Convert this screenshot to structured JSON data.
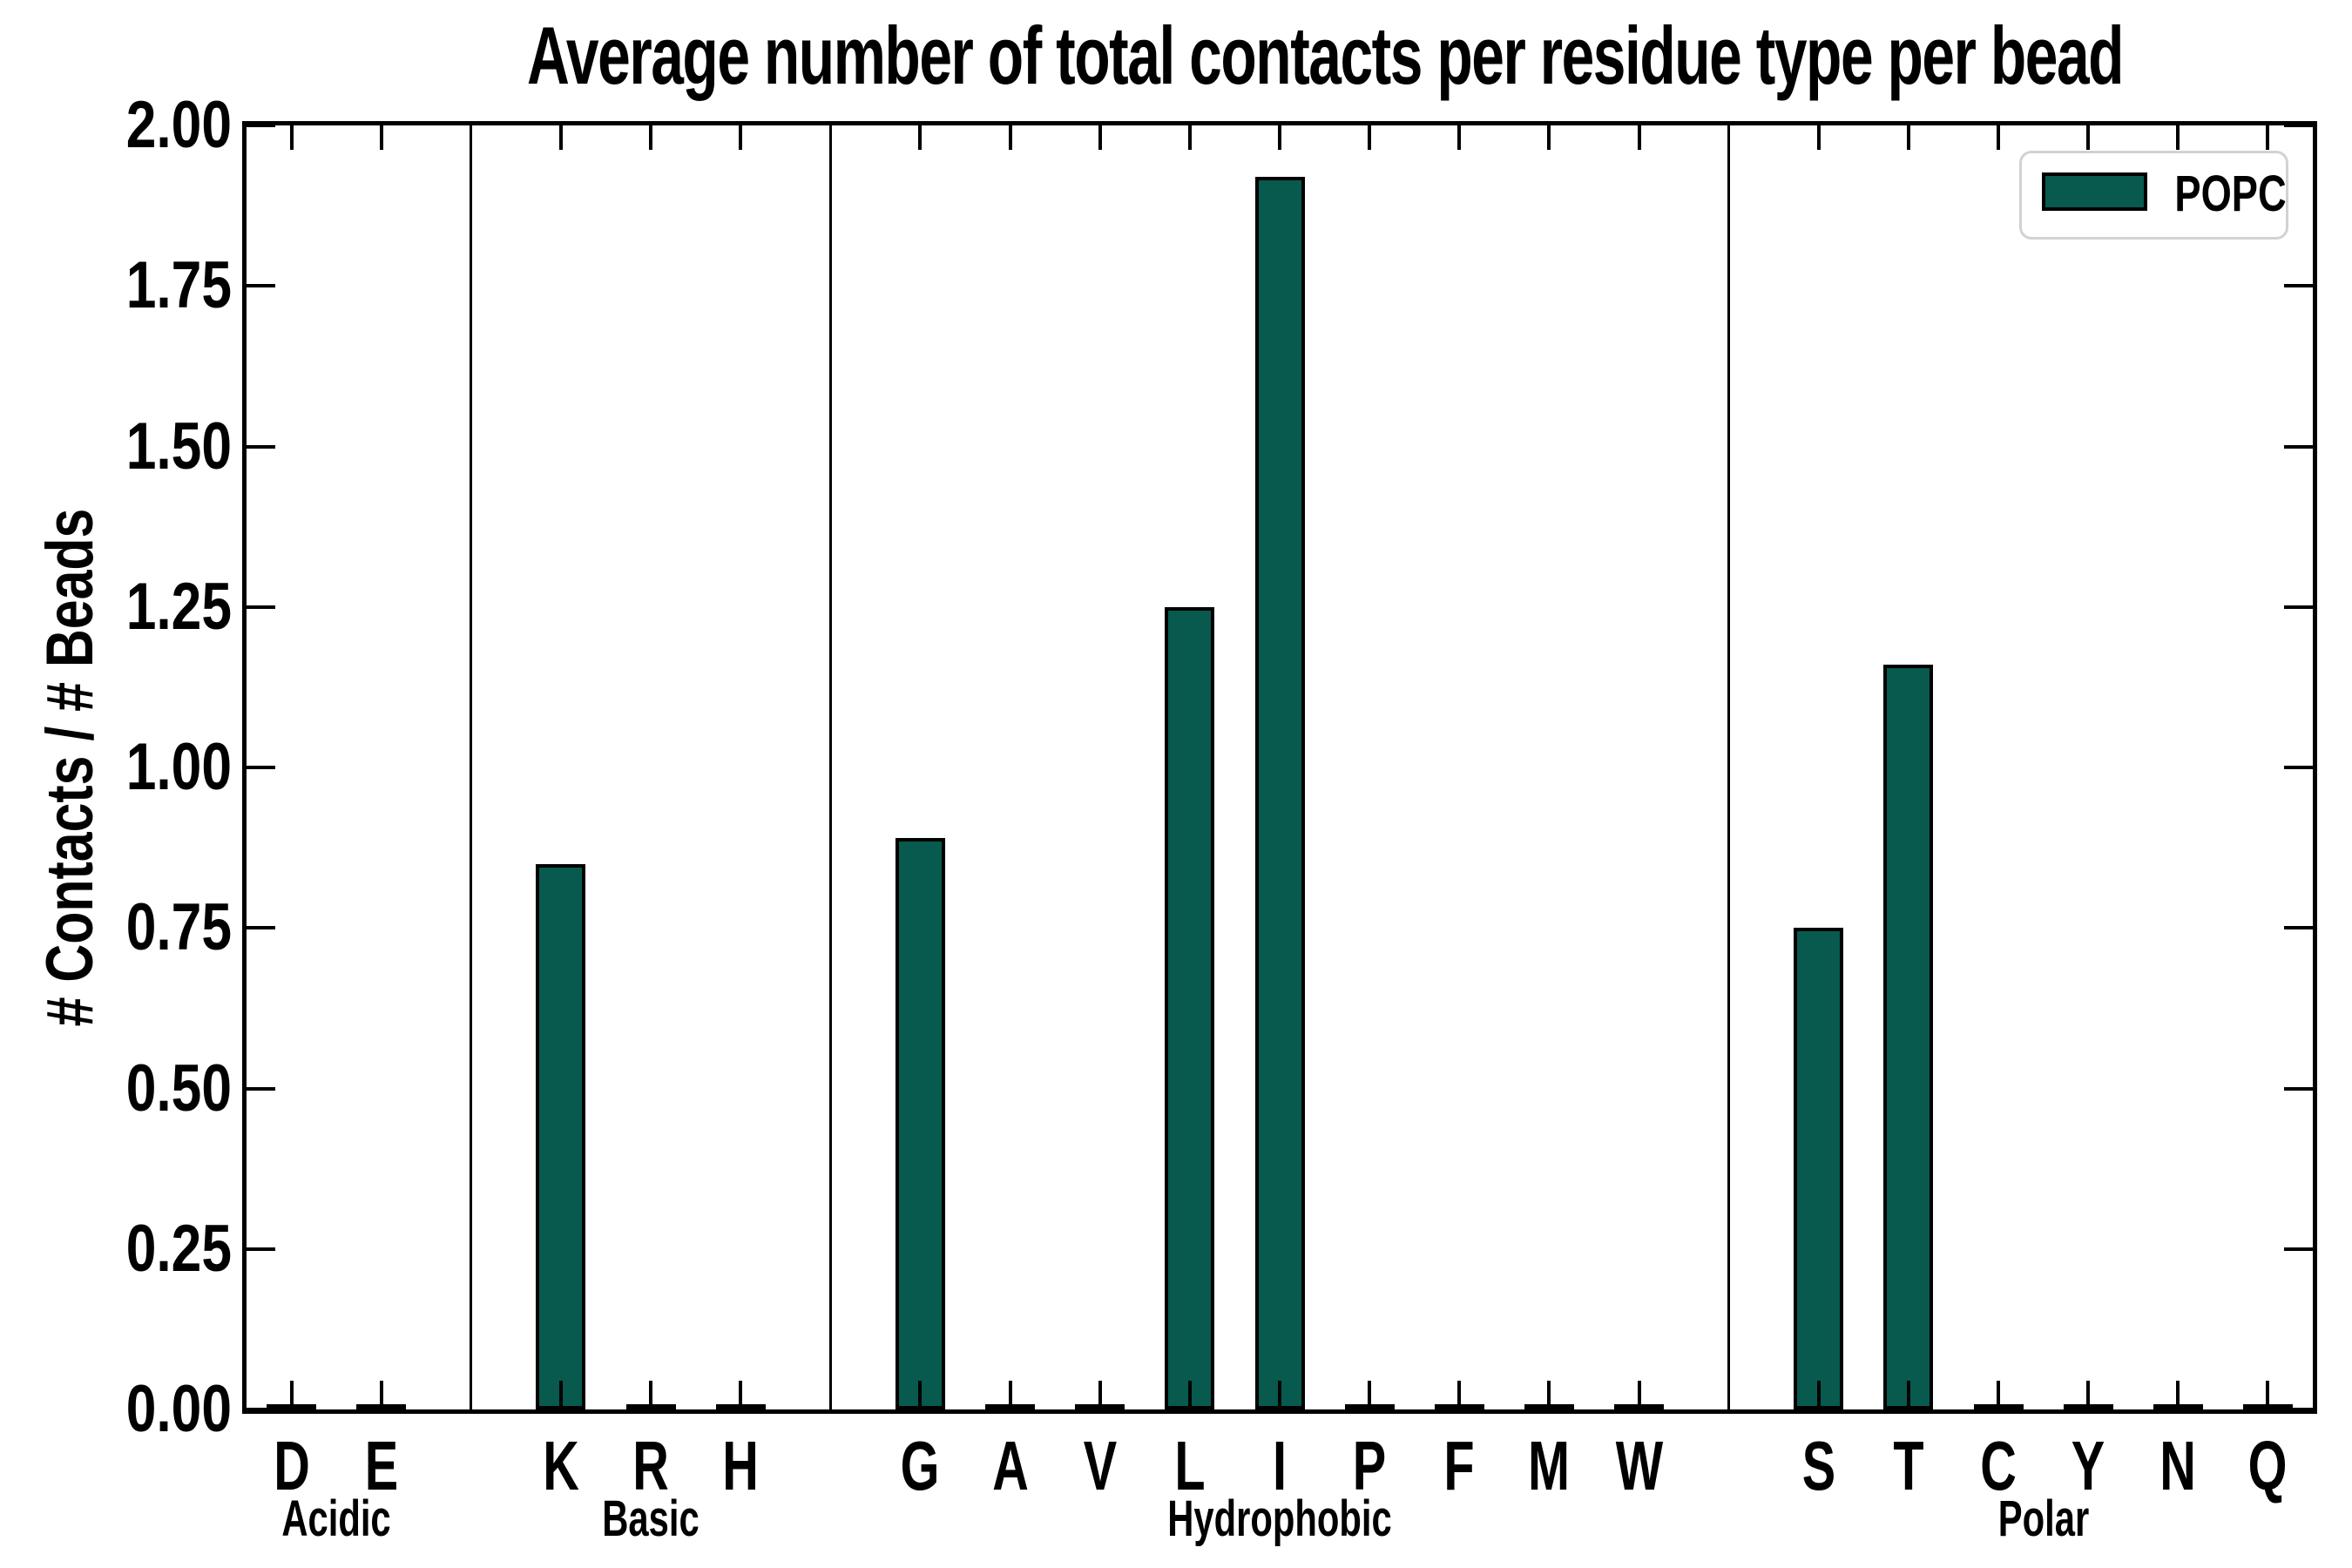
{
  "figure": {
    "title": "Average number of total contacts per residue type per bead",
    "ylabel": "# Contacts / # Beads",
    "legend_label": "POPC"
  },
  "chart_data": {
    "type": "bar",
    "title": "Average number of total contacts per residue type per bead",
    "xlabel": "",
    "ylabel": "# Contacts / # Beads",
    "ylim": [
      0,
      2.0
    ],
    "ytick_interval": 0.25,
    "ytick_labels": [
      "0.00",
      "0.25",
      "0.50",
      "0.75",
      "1.00",
      "1.25",
      "1.50",
      "1.75",
      "2.00"
    ],
    "grid": false,
    "bar_color": "#075A4D",
    "bar_edge_color": "#000000",
    "group_divider_color": "#000000",
    "legend": {
      "position": "upper right",
      "entries": [
        {
          "label": "POPC",
          "color": "#075A4D"
        }
      ]
    },
    "groups": [
      {
        "name": "Acidic",
        "categories": [
          "D",
          "E"
        ],
        "values": [
          0,
          0
        ]
      },
      {
        "name": "Basic",
        "categories": [
          "K",
          "R",
          "H"
        ],
        "values": [
          0.85,
          0,
          0
        ]
      },
      {
        "name": "Hydrophobic",
        "categories": [
          "G",
          "A",
          "V",
          "L",
          "I",
          "P",
          "F",
          "M",
          "W"
        ],
        "values": [
          0.89,
          0,
          0,
          1.25,
          1.92,
          0,
          0,
          0,
          0
        ]
      },
      {
        "name": "Polar",
        "categories": [
          "S",
          "T",
          "C",
          "Y",
          "N",
          "Q"
        ],
        "values": [
          0.75,
          1.16,
          0,
          0,
          0,
          0
        ]
      }
    ]
  }
}
